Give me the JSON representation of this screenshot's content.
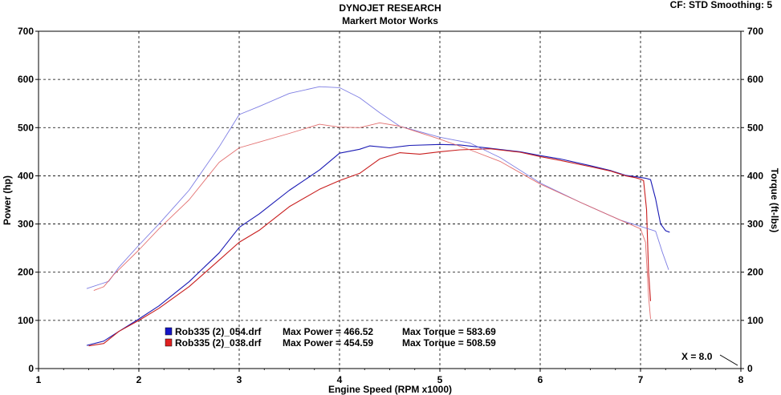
{
  "header": {
    "title": "DYNOJET RESEARCH",
    "subtitle": "Markert Motor Works",
    "corner_info": "CF: STD  Smoothing: 5"
  },
  "chart_data": {
    "type": "line",
    "xlabel": "Engine Speed (RPM x1000)",
    "ylabel_left": "Power (hp)",
    "ylabel_right": "Torque (ft-lbs)",
    "xlim": [
      1,
      8
    ],
    "ylim": [
      0,
      700
    ],
    "x_ticks": [
      "1",
      "2",
      "3",
      "4",
      "5",
      "6",
      "7",
      "8"
    ],
    "y_ticks": [
      "0",
      "100",
      "200",
      "300",
      "400",
      "500",
      "600",
      "700"
    ],
    "grid": true,
    "cursor_readout": "X = 8.0",
    "legend": [
      {
        "file": "Rob335 (2)_054.drf",
        "power_text": "Max Power = 466.52",
        "torque_text": "Max Torque = 583.69",
        "color": "#1515c8"
      },
      {
        "file": "Rob335 (2)_038.drf",
        "power_text": "Max Power = 454.59",
        "torque_text": "Max Torque = 508.59",
        "color": "#e02020"
      }
    ],
    "series": [
      {
        "name": "Rob335 (2)_054.drf Power",
        "color": "#1a1ab4",
        "opacity": 1,
        "width": 1.1,
        "x": [
          1.48,
          1.65,
          1.8,
          2.0,
          2.2,
          2.5,
          2.8,
          3.0,
          3.2,
          3.5,
          3.8,
          4.0,
          4.2,
          4.3,
          4.5,
          4.7,
          5.0,
          5.2,
          5.5,
          5.8,
          6.0,
          6.2,
          6.5,
          6.7,
          6.85,
          6.95,
          7.05,
          7.1,
          7.15,
          7.2,
          7.25,
          7.29
        ],
        "y": [
          48,
          57,
          77,
          103,
          130,
          180,
          240,
          293,
          321,
          370,
          412,
          447,
          455,
          462,
          458,
          463,
          465,
          464,
          457,
          450,
          442,
          435,
          421,
          411,
          401,
          398,
          395,
          392,
          352,
          300,
          286,
          283
        ]
      },
      {
        "name": "Rob335 (2)_038.drf Power",
        "color": "#c81e1e",
        "opacity": 1,
        "width": 1.1,
        "x": [
          1.5,
          1.65,
          1.8,
          2.0,
          2.2,
          2.5,
          2.8,
          3.0,
          3.2,
          3.5,
          3.8,
          4.0,
          4.2,
          4.4,
          4.6,
          4.8,
          5.0,
          5.2,
          5.5,
          5.8,
          6.0,
          6.2,
          6.5,
          6.7,
          6.85,
          6.95,
          7.0,
          7.03,
          7.06,
          7.08,
          7.1
        ],
        "y": [
          47,
          52,
          77,
          100,
          125,
          170,
          225,
          262,
          287,
          336,
          372,
          390,
          405,
          435,
          448,
          445,
          450,
          454,
          456,
          449,
          440,
          432,
          419,
          410,
          400,
          396,
          393,
          390,
          330,
          200,
          140
        ]
      },
      {
        "name": "Rob335 (2)_054.drf Torque",
        "color": "#7070e0",
        "opacity": 0.9,
        "width": 0.9,
        "x": [
          1.48,
          1.7,
          1.8,
          2.0,
          2.2,
          2.5,
          2.8,
          3.0,
          3.2,
          3.5,
          3.8,
          4.0,
          4.2,
          4.4,
          4.6,
          5.0,
          5.3,
          5.6,
          6.0,
          6.4,
          6.8,
          7.0,
          7.15,
          7.22,
          7.28
        ],
        "y": [
          166,
          181,
          210,
          256,
          300,
          370,
          460,
          527,
          544,
          571,
          585,
          583,
          562,
          531,
          503,
          480,
          468,
          438,
          385,
          345,
          308,
          295,
          285,
          240,
          205
        ]
      },
      {
        "name": "Rob335 (2)_038.drf Torque",
        "color": "#e06060",
        "opacity": 0.9,
        "width": 0.9,
        "x": [
          1.55,
          1.65,
          1.75,
          2.0,
          2.2,
          2.5,
          2.8,
          3.0,
          3.2,
          3.5,
          3.8,
          4.0,
          4.2,
          4.4,
          4.6,
          5.0,
          5.3,
          5.6,
          6.0,
          6.4,
          6.8,
          7.0,
          7.05,
          7.08,
          7.1
        ],
        "y": [
          162,
          170,
          195,
          246,
          290,
          350,
          428,
          458,
          470,
          488,
          507,
          501,
          500,
          510,
          503,
          476,
          454,
          430,
          383,
          345,
          308,
          290,
          262,
          150,
          103
        ]
      }
    ]
  }
}
